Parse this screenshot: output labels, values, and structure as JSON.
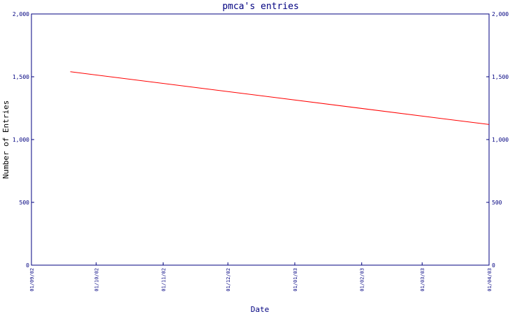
{
  "chart_data": {
    "type": "line",
    "title": "pmca's entries",
    "xlabel": "Date",
    "ylabel": "Number of Entries",
    "ylim": [
      0,
      2000
    ],
    "yticks": [
      0,
      500,
      1000,
      1500,
      2000
    ],
    "ytick_labels": [
      "0",
      "500",
      "1,000",
      "1,500",
      "2,000"
    ],
    "xlim": [
      "2002-09-01",
      "2003-04-01"
    ],
    "xtick_labels": [
      "01/09/02",
      "01/10/02",
      "01/11/02",
      "01/12/02",
      "01/01/03",
      "01/02/03",
      "01/03/03",
      "01/04/03"
    ],
    "xtick_dates": [
      "2002-09-01",
      "2002-10-01",
      "2002-11-01",
      "2002-12-01",
      "2003-01-01",
      "2003-02-01",
      "2003-03-01",
      "2003-04-01"
    ],
    "right_axis": true,
    "grid": false,
    "series": [
      {
        "color": "#ff0000",
        "x": [
          "2002-09-19",
          "2003-04-01"
        ],
        "y": [
          1540,
          1120
        ]
      }
    ],
    "colors": {
      "axis": "#000080",
      "line": "#ff0000"
    }
  }
}
